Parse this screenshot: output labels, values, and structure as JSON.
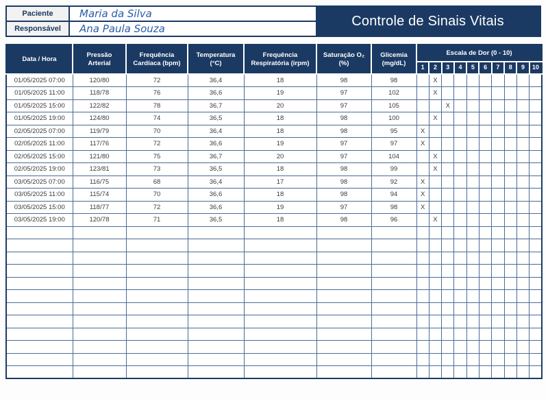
{
  "title": "Controle de Sinais Vitais",
  "patient_info": {
    "label_paciente": "Paciente",
    "value_paciente": "Maria da Silva",
    "label_responsavel": "Responsável",
    "value_responsavel": "Ana Paula Souza"
  },
  "colors": {
    "navy": "#1b3a63",
    "grid_line": "#4a6b94",
    "label_bg": "#f2f2f2",
    "handwriting_blue": "#2a5da8"
  },
  "table": {
    "columns": [
      {
        "id": "datetime",
        "lines": [
          "Data / Hora"
        ]
      },
      {
        "id": "pressao-arterial",
        "lines": [
          "Pressão",
          "Arterial"
        ]
      },
      {
        "id": "freq-cardiaca",
        "lines": [
          "Frequência",
          "Cardíaca (bpm)"
        ]
      },
      {
        "id": "temperatura",
        "lines": [
          "Temperatura",
          "(°C)"
        ]
      },
      {
        "id": "freq-respiratoria",
        "lines": [
          "Frequência",
          "Respiratória (irpm)"
        ]
      },
      {
        "id": "saturacao-o2",
        "lines": [
          "Saturação O₂",
          "(%)"
        ]
      },
      {
        "id": "glicemia",
        "lines": [
          "Glicemia",
          "(mg/dL)"
        ]
      }
    ],
    "pain_scale": {
      "label": "Escala de Dor (0 - 10)",
      "levels": [
        "1",
        "2",
        "3",
        "4",
        "5",
        "6",
        "7",
        "8",
        "9",
        "10"
      ],
      "mark": "X"
    },
    "rows": [
      {
        "datetime": "01/05/2025 07:00",
        "pressao": "120/80",
        "fc": "72",
        "temp": "36,4",
        "fr": "18",
        "sat": "98",
        "glicemia": "98",
        "dor": 2
      },
      {
        "datetime": "01/05/2025 11:00",
        "pressao": "118/78",
        "fc": "76",
        "temp": "36,6",
        "fr": "19",
        "sat": "97",
        "glicemia": "102",
        "dor": 2
      },
      {
        "datetime": "01/05/2025 15:00",
        "pressao": "122/82",
        "fc": "78",
        "temp": "36,7",
        "fr": "20",
        "sat": "97",
        "glicemia": "105",
        "dor": 3
      },
      {
        "datetime": "01/05/2025 19:00",
        "pressao": "124/80",
        "fc": "74",
        "temp": "36,5",
        "fr": "18",
        "sat": "98",
        "glicemia": "100",
        "dor": 2
      },
      {
        "datetime": "02/05/2025 07:00",
        "pressao": "119/79",
        "fc": "70",
        "temp": "36,4",
        "fr": "18",
        "sat": "98",
        "glicemia": "95",
        "dor": 1
      },
      {
        "datetime": "02/05/2025 11:00",
        "pressao": "117/76",
        "fc": "72",
        "temp": "36,6",
        "fr": "19",
        "sat": "97",
        "glicemia": "97",
        "dor": 1
      },
      {
        "datetime": "02/05/2025 15:00",
        "pressao": "121/80",
        "fc": "75",
        "temp": "36,7",
        "fr": "20",
        "sat": "97",
        "glicemia": "104",
        "dor": 2
      },
      {
        "datetime": "02/05/2025 19:00",
        "pressao": "123/81",
        "fc": "73",
        "temp": "36,5",
        "fr": "18",
        "sat": "98",
        "glicemia": "99",
        "dor": 2
      },
      {
        "datetime": "03/05/2025 07:00",
        "pressao": "116/75",
        "fc": "68",
        "temp": "36,4",
        "fr": "17",
        "sat": "98",
        "glicemia": "92",
        "dor": 1
      },
      {
        "datetime": "03/05/2025 11:00",
        "pressao": "115/74",
        "fc": "70",
        "temp": "36,6",
        "fr": "18",
        "sat": "98",
        "glicemia": "94",
        "dor": 1
      },
      {
        "datetime": "03/05/2025 15:00",
        "pressao": "118/77",
        "fc": "72",
        "temp": "36,6",
        "fr": "19",
        "sat": "97",
        "glicemia": "98",
        "dor": 1
      },
      {
        "datetime": "03/05/2025 19:00",
        "pressao": "120/78",
        "fc": "71",
        "temp": "36,5",
        "fr": "18",
        "sat": "98",
        "glicemia": "96",
        "dor": 2
      }
    ],
    "empty_rows": 12
  }
}
